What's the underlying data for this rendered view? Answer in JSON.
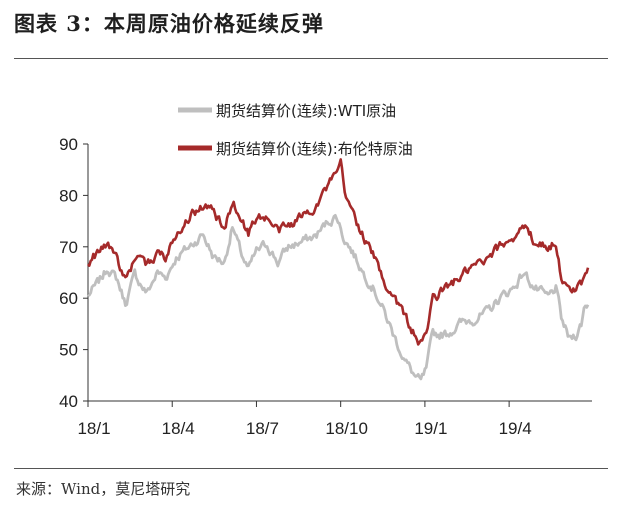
{
  "title": "图表 3：本周原油价格延续反弹",
  "source": "来源：Wind，莫尼塔研究",
  "chart_data": {
    "type": "line",
    "x_ticks": [
      "18/1",
      "18/4",
      "18/7",
      "18/10",
      "19/1",
      "19/4"
    ],
    "x_tick_index": [
      0,
      63,
      126,
      189,
      252,
      315
    ],
    "ylim": [
      40,
      90
    ],
    "yticks": [
      40,
      50,
      60,
      70,
      80,
      90
    ],
    "grid": false,
    "legend": "top",
    "series": [
      {
        "name": "期货结算价(连续):WTI原油",
        "color": "#bfbfbf",
        "anchors": [
          [
            0,
            60.5
          ],
          [
            8,
            63
          ],
          [
            15,
            66
          ],
          [
            22,
            63.5
          ],
          [
            28,
            59
          ],
          [
            35,
            64.5
          ],
          [
            44,
            61
          ],
          [
            52,
            65
          ],
          [
            58,
            64
          ],
          [
            66,
            68
          ],
          [
            76,
            70
          ],
          [
            86,
            72.5
          ],
          [
            94,
            68
          ],
          [
            102,
            67
          ],
          [
            108,
            74
          ],
          [
            114,
            69
          ],
          [
            120,
            65.5
          ],
          [
            126,
            69
          ],
          [
            134,
            70.5
          ],
          [
            142,
            67
          ],
          [
            150,
            70
          ],
          [
            160,
            71
          ],
          [
            170,
            72
          ],
          [
            180,
            75
          ],
          [
            186,
            76
          ],
          [
            191,
            72
          ],
          [
            198,
            69
          ],
          [
            206,
            65
          ],
          [
            214,
            62
          ],
          [
            222,
            57
          ],
          [
            230,
            52
          ],
          [
            238,
            47.5
          ],
          [
            244,
            45
          ],
          [
            249,
            43.5
          ],
          [
            253,
            46
          ],
          [
            258,
            53
          ],
          [
            268,
            53
          ],
          [
            278,
            55
          ],
          [
            288,
            56
          ],
          [
            298,
            57
          ],
          [
            308,
            60
          ],
          [
            318,
            62
          ],
          [
            326,
            65
          ],
          [
            334,
            62
          ],
          [
            344,
            60
          ],
          [
            350,
            62
          ],
          [
            354,
            56
          ],
          [
            360,
            52
          ],
          [
            365,
            53
          ],
          [
            369,
            55
          ],
          [
            371,
            58
          ],
          [
            374,
            59
          ]
        ]
      },
      {
        "name": "期货结算价(连续):布伦特原油",
        "color": "#a52a2a",
        "anchors": [
          [
            0,
            67
          ],
          [
            8,
            69
          ],
          [
            15,
            70.5
          ],
          [
            22,
            68
          ],
          [
            28,
            63
          ],
          [
            35,
            68
          ],
          [
            44,
            66
          ],
          [
            52,
            69
          ],
          [
            58,
            68
          ],
          [
            66,
            73
          ],
          [
            76,
            76
          ],
          [
            86,
            78
          ],
          [
            94,
            77
          ],
          [
            102,
            73
          ],
          [
            108,
            79
          ],
          [
            114,
            76
          ],
          [
            120,
            72.5
          ],
          [
            126,
            76
          ],
          [
            134,
            75.5
          ],
          [
            142,
            73
          ],
          [
            150,
            74
          ],
          [
            160,
            76
          ],
          [
            170,
            78
          ],
          [
            180,
            82
          ],
          [
            186,
            84
          ],
          [
            189,
            86
          ],
          [
            193,
            79
          ],
          [
            198,
            77
          ],
          [
            206,
            72
          ],
          [
            214,
            68
          ],
          [
            222,
            63
          ],
          [
            230,
            60
          ],
          [
            238,
            56
          ],
          [
            244,
            53
          ],
          [
            249,
            51
          ],
          [
            253,
            53
          ],
          [
            258,
            60
          ],
          [
            268,
            62
          ],
          [
            278,
            64
          ],
          [
            288,
            66
          ],
          [
            298,
            67
          ],
          [
            308,
            70
          ],
          [
            318,
            72
          ],
          [
            326,
            74
          ],
          [
            334,
            71
          ],
          [
            344,
            70
          ],
          [
            350,
            71
          ],
          [
            354,
            64
          ],
          [
            360,
            61
          ],
          [
            365,
            62
          ],
          [
            369,
            63
          ],
          [
            371,
            65
          ],
          [
            374,
            66.5
          ]
        ]
      }
    ]
  }
}
